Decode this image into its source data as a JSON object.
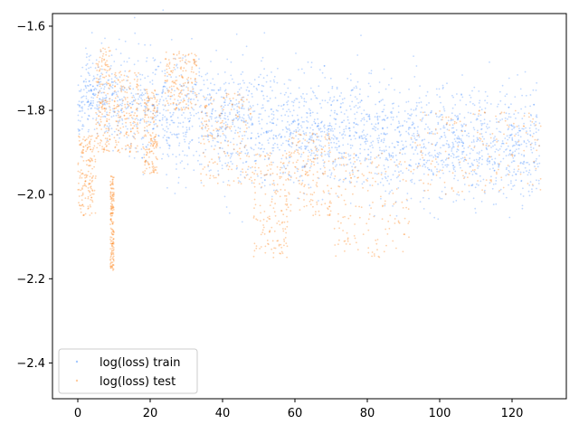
{
  "chart_data": {
    "type": "scatter",
    "title": "",
    "xlabel": "",
    "ylabel": "",
    "xlim": [
      -7,
      135
    ],
    "ylim": [
      -2.485,
      -1.57
    ],
    "xticks": [
      0,
      20,
      40,
      60,
      80,
      100,
      120
    ],
    "yticks": [
      -1.6,
      -1.8,
      -2.0,
      -2.2,
      -2.4
    ],
    "ytick_labels": [
      "−1.6",
      "−1.8",
      "−2.0",
      "−2.2",
      "−2.4"
    ],
    "grid": false,
    "legend_position": "lower-left",
    "series": [
      {
        "name": "log(loss) train",
        "color": "#1f77ff",
        "marker": "dot",
        "alpha": 0.15,
        "profile_x": [
          0,
          2,
          6,
          12,
          20,
          30,
          40,
          50,
          60,
          70,
          80,
          90,
          100,
          110,
          120,
          128
        ],
        "profile_center": [
          -1.82,
          -1.76,
          -1.76,
          -1.78,
          -1.8,
          -1.81,
          -1.83,
          -1.84,
          -1.85,
          -1.855,
          -1.86,
          -1.87,
          -1.875,
          -1.88,
          -1.885,
          -1.885
        ],
        "profile_spread": [
          0.06,
          0.06,
          0.07,
          0.08,
          0.09,
          0.09,
          0.09,
          0.09,
          0.09,
          0.09,
          0.09,
          0.09,
          0.09,
          0.09,
          0.09,
          0.09
        ],
        "x_range": [
          0,
          128
        ]
      },
      {
        "name": "log(loss) test",
        "color": "#ff7f0e",
        "marker": "dot",
        "alpha": 0.15,
        "clusters": [
          {
            "x": [
              0,
              5
            ],
            "y": [
              -2.05,
              -1.86
            ]
          },
          {
            "x": [
              5,
              9
            ],
            "y": [
              -1.9,
              -1.65
            ]
          },
          {
            "x": [
              9,
              10
            ],
            "y": [
              -2.18,
              -1.95
            ]
          },
          {
            "x": [
              10,
              17
            ],
            "y": [
              -1.9,
              -1.7
            ]
          },
          {
            "x": [
              18,
              22
            ],
            "y": [
              -1.95,
              -1.75
            ]
          },
          {
            "x": [
              24,
              33
            ],
            "y": [
              -1.8,
              -1.66
            ]
          },
          {
            "x": [
              34,
              48
            ],
            "y": [
              -1.98,
              -1.76
            ]
          },
          {
            "x": [
              48,
              58
            ],
            "y": [
              -2.15,
              -1.9
            ]
          },
          {
            "x": [
              58,
              70
            ],
            "y": [
              -2.05,
              -1.85
            ]
          },
          {
            "x": [
              70,
              92
            ],
            "y": [
              -2.15,
              -1.9
            ]
          },
          {
            "x": [
              92,
              128
            ],
            "y": [
              -2.0,
              -1.8
            ]
          }
        ],
        "x_range": [
          0,
          128
        ]
      }
    ]
  }
}
